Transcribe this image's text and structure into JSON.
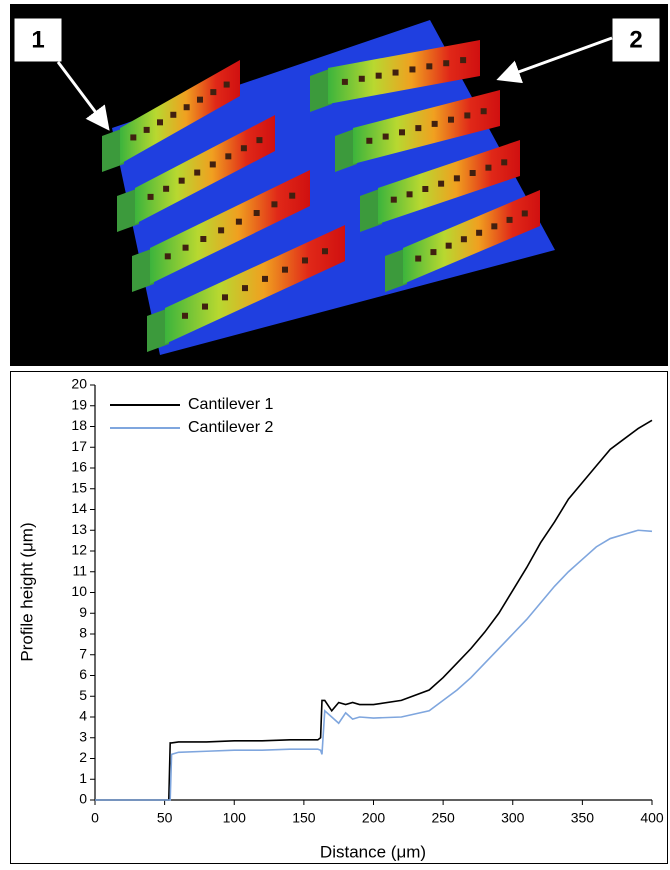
{
  "image": {
    "labels": [
      "1",
      "2"
    ]
  },
  "chart_data": {
    "type": "line",
    "x_label": "Distance (μm)",
    "y_label": "Profile height (μm)",
    "x": [
      0,
      50,
      53,
      54,
      55,
      60,
      80,
      100,
      120,
      140,
      160,
      162,
      163,
      165,
      170,
      175,
      180,
      185,
      190,
      200,
      220,
      240,
      250,
      260,
      270,
      280,
      290,
      300,
      310,
      320,
      330,
      340,
      350,
      360,
      370,
      380,
      390,
      400
    ],
    "series": [
      {
        "name": "Cantilever 1",
        "color": "#000000",
        "values": [
          0,
          0,
          0,
          2.75,
          2.75,
          2.8,
          2.8,
          2.85,
          2.85,
          2.9,
          2.9,
          3.0,
          4.8,
          4.8,
          4.3,
          4.7,
          4.6,
          4.7,
          4.6,
          4.6,
          4.8,
          5.3,
          5.9,
          6.6,
          7.3,
          8.1,
          9.0,
          10.1,
          11.2,
          12.4,
          13.4,
          14.5,
          15.3,
          16.1,
          16.9,
          17.4,
          17.9,
          18.3
        ]
      },
      {
        "name": "Cantilever 2",
        "color": "#7fa6de",
        "values": [
          0,
          0,
          0,
          0,
          2.2,
          2.3,
          2.35,
          2.4,
          2.4,
          2.45,
          2.45,
          2.4,
          2.2,
          4.3,
          4.0,
          3.7,
          4.2,
          3.9,
          4.0,
          3.95,
          4.0,
          4.3,
          4.8,
          5.3,
          5.9,
          6.6,
          7.3,
          8.0,
          8.7,
          9.5,
          10.3,
          11.0,
          11.6,
          12.2,
          12.6,
          12.8,
          13.0,
          12.95
        ]
      }
    ],
    "xlim": [
      0,
      400
    ],
    "xticks": [
      0,
      50,
      100,
      150,
      200,
      250,
      300,
      350,
      400
    ],
    "ylim": [
      0,
      20
    ],
    "yticks": [
      0,
      1,
      2,
      3,
      4,
      5,
      6,
      7,
      8,
      9,
      10,
      11,
      12,
      13,
      14,
      15,
      16,
      17,
      18,
      19,
      20
    ],
    "legend": "upper-left",
    "grid": false
  }
}
